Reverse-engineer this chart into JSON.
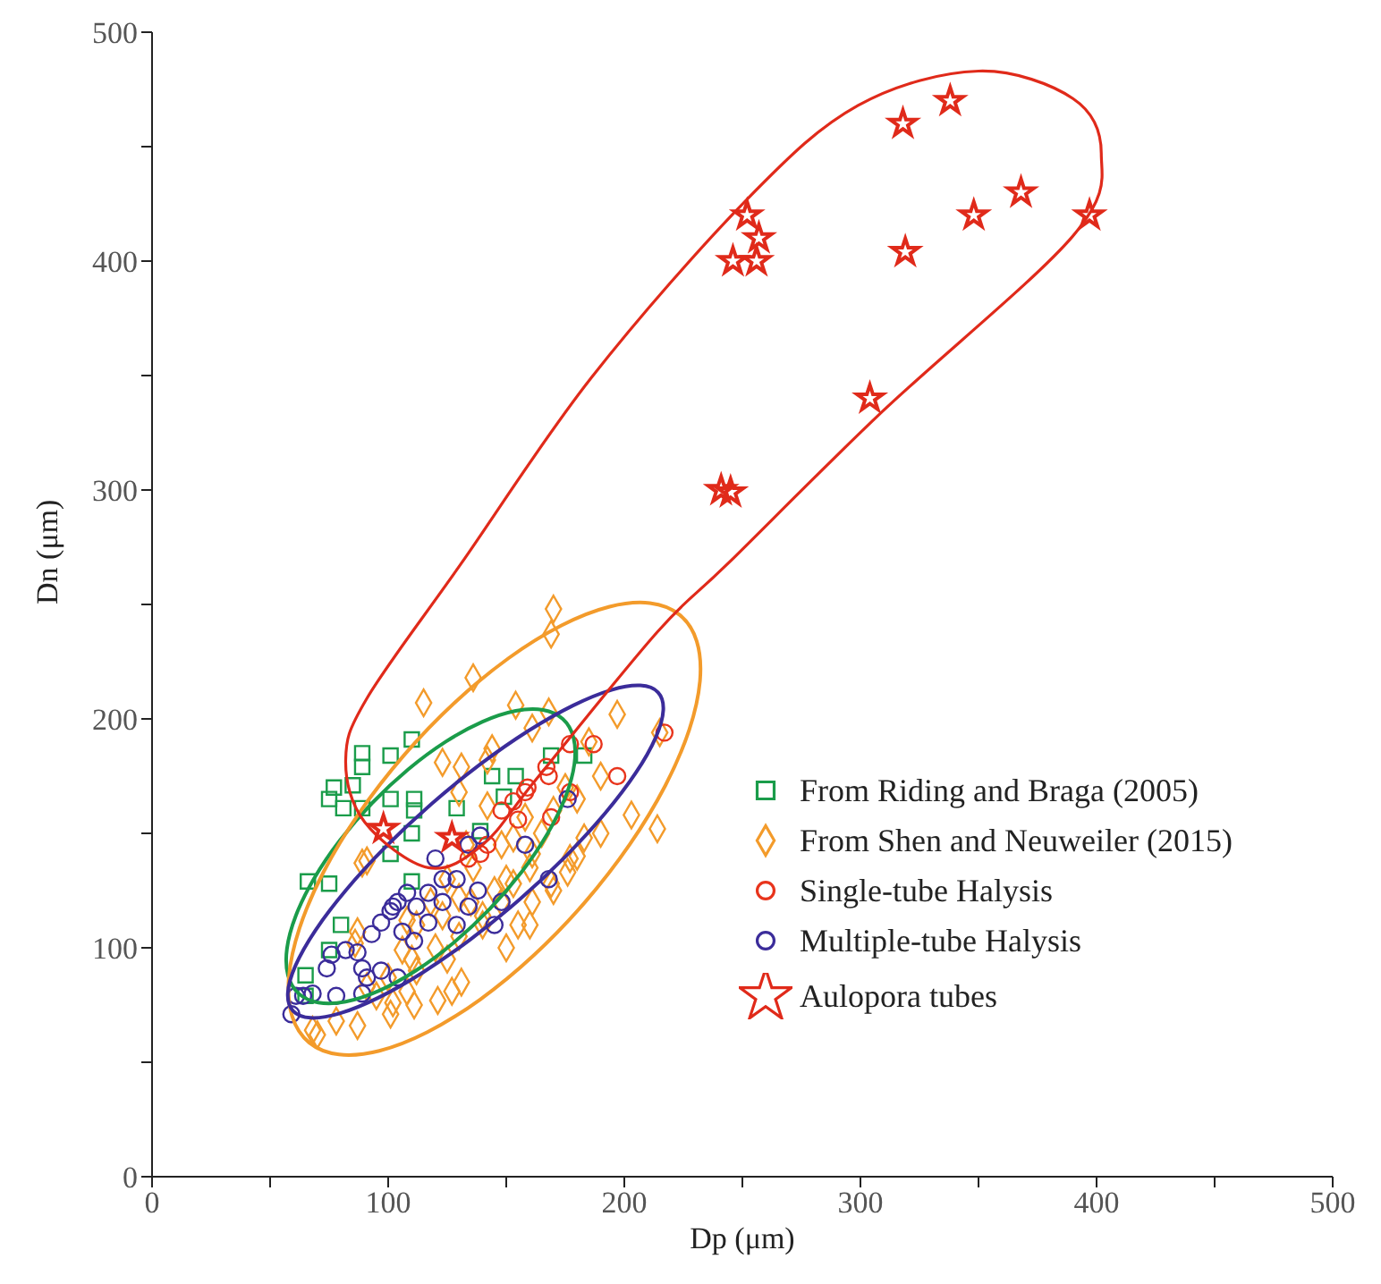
{
  "chart_data": {
    "type": "scatter",
    "xlabel": "Dp (μm)",
    "ylabel": "Dn (μm)",
    "xlim": [
      0,
      500
    ],
    "ylim": [
      0,
      500
    ],
    "xticks": [
      0,
      {
        "value": 50,
        "label": null
      },
      100,
      {
        "value": 150,
        "label": null
      },
      200,
      {
        "value": 250,
        "label": null
      },
      300,
      {
        "value": 350,
        "label": null
      },
      400,
      {
        "value": 450,
        "label": null
      },
      500
    ],
    "yticks": [
      0,
      {
        "value": 50,
        "label": null
      },
      100,
      {
        "value": 150,
        "label": null
      },
      200,
      {
        "value": 250,
        "label": null
      },
      300,
      {
        "value": 350,
        "label": null
      },
      400,
      {
        "value": 450,
        "label": null
      },
      500
    ],
    "legend": "right",
    "series": [
      {
        "name": "From Riding and Braga (2005)",
        "color": "#1a9c4a",
        "marker": "square",
        "x": [
          89,
          101,
          110,
          89,
          77,
          85,
          75,
          81,
          89,
          101,
          111,
          111,
          110,
          101,
          66,
          75,
          110,
          80,
          75,
          65,
          65,
          144,
          154,
          169,
          183,
          149,
          129,
          139
        ],
        "values": [
          185,
          184,
          191,
          179,
          170,
          171,
          165,
          161,
          161,
          165,
          165,
          160,
          150,
          141,
          129,
          128,
          129,
          110,
          99,
          88,
          79,
          175,
          175,
          184,
          184,
          166,
          161,
          151
        ]
      },
      {
        "name": "From Shen and Neuweiler (2015)",
        "color": "#f39b2b",
        "marker": "diamond",
        "x": [
          170,
          169,
          136,
          115,
          154,
          168,
          161,
          197,
          144,
          123,
          131,
          142,
          130,
          142,
          215,
          203,
          214,
          183,
          91,
          133,
          148,
          161,
          176,
          169,
          153,
          136,
          130,
          148,
          161,
          140,
          123,
          155,
          112,
          177,
          158,
          153,
          89,
          87,
          86,
          108,
          106,
          112,
          100,
          91,
          108,
          102,
          95,
          70,
          68,
          87,
          78,
          101,
          111,
          127,
          131,
          121,
          120,
          125,
          130,
          140,
          145,
          150,
          160,
          165,
          170,
          175,
          180,
          185,
          190,
          110,
          118,
          125,
          135,
          150,
          160,
          170,
          180,
          190
        ],
        "values": [
          248,
          237,
          218,
          207,
          206,
          203,
          196,
          202,
          187,
          181,
          179,
          182,
          168,
          162,
          194,
          158,
          152,
          148,
          138,
          145,
          145,
          141,
          133,
          128,
          128,
          135,
          122,
          120,
          120,
          114,
          114,
          110,
          110,
          139,
          157,
          148,
          137,
          107,
          102,
          112,
          99,
          90,
          87,
          83,
          81,
          76,
          79,
          62,
          64,
          66,
          68,
          71,
          75,
          81,
          85,
          77,
          100,
          95,
          105,
          110,
          125,
          130,
          135,
          150,
          160,
          170,
          165,
          190,
          175,
          95,
          120,
          130,
          120,
          100,
          110,
          125,
          140,
          150
        ]
      },
      {
        "name": "Single-tube Halysis",
        "color": "#e8341c",
        "marker": "circle",
        "x": [
          177,
          187,
          217,
          197,
          167,
          168,
          159,
          158,
          177,
          169,
          155,
          148,
          153,
          142,
          134,
          139
        ],
        "values": [
          189,
          189,
          194,
          175,
          179,
          175,
          170,
          168,
          168,
          157,
          156,
          160,
          164,
          145,
          139,
          141
        ]
      },
      {
        "name": "Multiple-tube Halysis",
        "color": "#3b2c9a",
        "marker": "circle",
        "x": [
          176,
          158,
          168,
          148,
          139,
          134,
          120,
          123,
          129,
          117,
          108,
          102,
          112,
          123,
          134,
          138,
          129,
          117,
          145,
          104,
          101,
          97,
          93,
          87,
          82,
          76,
          74,
          89,
          97,
          91,
          104,
          78,
          89,
          61,
          64,
          68,
          59,
          106,
          111
        ],
        "values": [
          165,
          145,
          130,
          120,
          149,
          145,
          139,
          130,
          130,
          124,
          124,
          118,
          118,
          120,
          118,
          125,
          110,
          111,
          110,
          120,
          116,
          111,
          106,
          98,
          99,
          97,
          91,
          91,
          90,
          87,
          87,
          79,
          80,
          79,
          79,
          80,
          71,
          107,
          103
        ]
      },
      {
        "name": "Aulopora tubes",
        "color": "#e02a1a",
        "marker": "star",
        "x": [
          252,
          257,
          246,
          256,
          318,
          338,
          368,
          348,
          397,
          319,
          304,
          241,
          245,
          98,
          127
        ],
        "values": [
          420,
          410,
          400,
          400,
          460,
          470,
          430,
          420,
          420,
          404,
          340,
          300,
          299,
          152,
          148
        ]
      }
    ]
  }
}
